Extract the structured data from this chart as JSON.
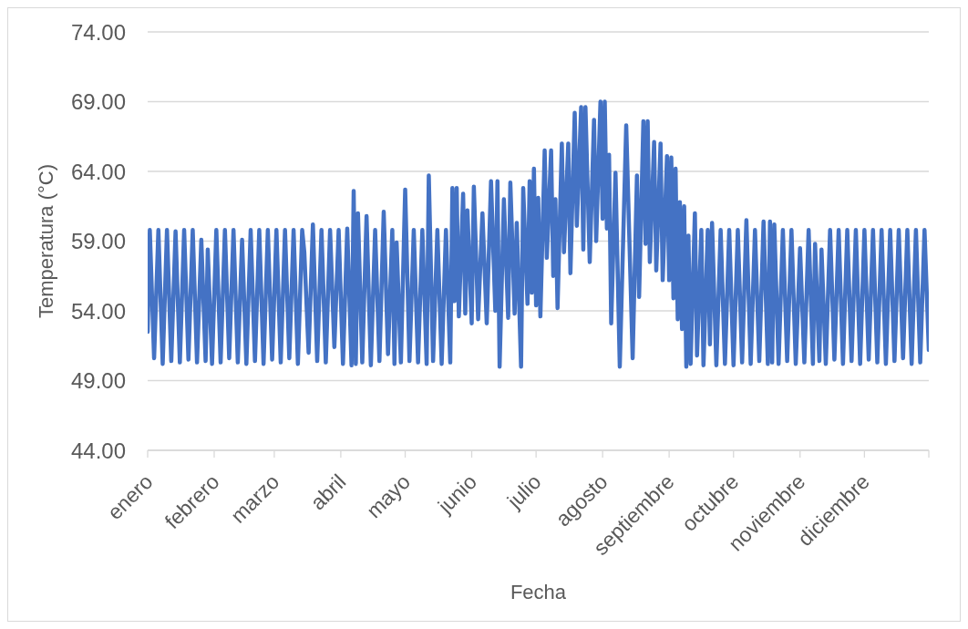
{
  "chart_data": {
    "type": "line",
    "xlabel": "Fecha",
    "ylabel": "Temperatura (°C)",
    "x": [
      "--01-01",
      "--01-02",
      "--01-04",
      "--01-06",
      "--01-08",
      "--01-10",
      "--01-12",
      "--01-14",
      "--01-16",
      "--01-18",
      "--01-20",
      "--01-22",
      "--01-24",
      "--01-26",
      "--01-28",
      "--01-29",
      "--01-31",
      "--02-02",
      "--02-04",
      "--02-06",
      "--02-08",
      "--02-10",
      "--02-12",
      "--02-14",
      "--02-16",
      "--02-18",
      "--02-20",
      "--02-22",
      "--02-24",
      "--02-26",
      "--02-28",
      "--03-02",
      "--03-04",
      "--03-06",
      "--03-08",
      "--03-10",
      "--03-12",
      "--03-14",
      "--03-15",
      "--03-17",
      "--03-19",
      "--03-21",
      "--03-23",
      "--03-25",
      "--03-27",
      "--03-29",
      "--03-31",
      "--04-02",
      "--04-04",
      "--04-06",
      "--04-07",
      "--04-08",
      "--04-09",
      "--04-11",
      "--04-13",
      "--04-15",
      "--04-17",
      "--04-19",
      "--04-21",
      "--04-23",
      "--04-25",
      "--04-26",
      "--04-27",
      "--04-29",
      "--05-01",
      "--05-03",
      "--05-05",
      "--05-07",
      "--05-09",
      "--05-11",
      "--05-12",
      "--05-14",
      "--05-16",
      "--05-18",
      "--05-20",
      "--05-22",
      "--05-23",
      "--05-24",
      "--05-25",
      "--05-26",
      "--05-28",
      "--05-29",
      "--05-30",
      "--06-01",
      "--06-02",
      "--06-04",
      "--06-06",
      "--06-08",
      "--06-10",
      "--06-12",
      "--06-13",
      "--06-14",
      "--06-16",
      "--06-18",
      "--06-19",
      "--06-21",
      "--06-22",
      "--06-24",
      "--06-25",
      "--06-27",
      "--06-28",
      "--06-29",
      "--06-30",
      "--07-01",
      "--07-02",
      "--07-03",
      "--07-05",
      "--07-06",
      "--07-08",
      "--07-09",
      "--07-10",
      "--07-11",
      "--07-13",
      "--07-14",
      "--07-16",
      "--07-17",
      "--07-19",
      "--07-20",
      "--07-22",
      "--07-23",
      "--07-24",
      "--07-26",
      "--07-28",
      "--07-29",
      "--07-31",
      "--08-01",
      "--08-02",
      "--08-03",
      "--08-04",
      "--08-05",
      "--08-07",
      "--08-09",
      "--08-12",
      "--08-15",
      "--08-17",
      "--08-18",
      "--08-20",
      "--08-21",
      "--08-22",
      "--08-23",
      "--08-25",
      "--08-26",
      "--08-28",
      "--08-29",
      "--08-31",
      "--09-01",
      "--09-02",
      "--09-03",
      "--09-04",
      "--09-05",
      "--09-06",
      "--09-07",
      "--09-08",
      "--09-09",
      "--09-10",
      "--09-11",
      "--09-13",
      "--09-14",
      "--09-16",
      "--09-17",
      "--09-19",
      "--09-20",
      "--09-21",
      "--09-23",
      "--09-25",
      "--09-27",
      "--09-29",
      "--10-01",
      "--10-03",
      "--10-05",
      "--10-07",
      "--10-09",
      "--10-11",
      "--10-13",
      "--10-15",
      "--10-17",
      "--10-18",
      "--10-19",
      "--10-20",
      "--10-22",
      "--10-24",
      "--10-26",
      "--10-28",
      "--10-30",
      "--11-01",
      "--11-03",
      "--11-05",
      "--11-07",
      "--11-08",
      "--11-10",
      "--11-11",
      "--11-13",
      "--11-15",
      "--11-17",
      "--11-19",
      "--11-21",
      "--11-23",
      "--11-25",
      "--11-27",
      "--11-29",
      "--12-01",
      "--12-03",
      "--12-05",
      "--12-07",
      "--12-09",
      "--12-11",
      "--12-13",
      "--12-15",
      "--12-17",
      "--12-19",
      "--12-21",
      "--12-23",
      "--12-25",
      "--12-27",
      "--12-29",
      "--12-31"
    ],
    "series": [
      {
        "color": "#4472c4",
        "values": [
          52.5,
          59.8,
          50.6,
          59.8,
          50.2,
          59.8,
          50.4,
          59.7,
          50.3,
          59.8,
          50.5,
          59.8,
          50.3,
          59.1,
          50.4,
          58.4,
          50.2,
          59.8,
          50.3,
          59.8,
          50.6,
          59.8,
          50.3,
          59.1,
          50.2,
          59.8,
          50.4,
          59.8,
          50.2,
          59.8,
          50.5,
          59.8,
          50.3,
          59.8,
          50.6,
          59.8,
          50.2,
          59.8,
          58.2,
          51.0,
          60.2,
          50.4,
          59.8,
          50.3,
          59.8,
          51.4,
          59.8,
          50.2,
          59.9,
          50.1,
          62.6,
          50.2,
          61.0,
          50.3,
          60.8,
          50.1,
          59.8,
          50.4,
          61.1,
          50.9,
          59.8,
          50.2,
          58.9,
          50.3,
          62.7,
          50.4,
          59.8,
          50.3,
          59.8,
          50.2,
          63.7,
          50.4,
          59.8,
          50.2,
          59.8,
          50.3,
          62.8,
          54.7,
          62.8,
          53.6,
          62.4,
          53.8,
          61.2,
          53.1,
          62.9,
          53.4,
          61.0,
          53.1,
          63.3,
          54.0,
          63.3,
          50.0,
          62.0,
          53.5,
          63.2,
          53.8,
          60.3,
          50.0,
          62.8,
          54.5,
          63.3,
          55.3,
          64.2,
          54.4,
          62.1,
          53.6,
          65.5,
          57.8,
          65.5,
          56.5,
          62.0,
          54.2,
          66.0,
          58.2,
          66.0,
          56.7,
          68.2,
          60.1,
          68.6,
          58.4,
          68.6,
          57.5,
          67.7,
          59.0,
          69.0,
          60.6,
          69.0,
          59.9,
          65.2,
          53.1,
          63.9,
          50.0,
          67.3,
          50.6,
          63.7,
          55.0,
          67.6,
          58.8,
          67.6,
          57.5,
          66.1,
          56.9,
          66.0,
          56.2,
          65.1,
          56.2,
          65.0,
          54.9,
          64.2,
          53.4,
          61.8,
          52.7,
          61.5,
          50.0,
          59.4,
          50.2,
          61.0,
          50.8,
          59.8,
          50.1,
          59.8,
          51.6,
          60.3,
          50.1,
          59.8,
          50.2,
          59.8,
          50.1,
          59.8,
          50.3,
          60.5,
          50.2,
          59.8,
          50.4,
          60.4,
          50.2,
          60.4,
          50.3,
          60.2,
          50.2,
          59.8,
          50.4,
          59.8,
          50.2,
          58.5,
          50.3,
          59.8,
          50.2,
          58.8,
          50.4,
          58.4,
          50.2,
          59.8,
          50.5,
          59.8,
          50.2,
          59.8,
          50.4,
          59.8,
          50.2,
          59.8,
          50.5,
          59.8,
          50.3,
          59.8,
          50.2,
          59.8,
          50.4,
          59.8,
          50.6,
          59.8,
          50.2,
          59.8,
          50.3,
          59.8,
          51.2
        ]
      }
    ],
    "xlim": [
      "--01-01",
      "--12-31"
    ],
    "xticks": [
      {
        "value": "--01-01",
        "label": "enero"
      },
      {
        "value": "--02-01",
        "label": "febrero"
      },
      {
        "value": "--03-01",
        "label": "marzo"
      },
      {
        "value": "--04-01",
        "label": "abril"
      },
      {
        "value": "--05-01",
        "label": "mayo"
      },
      {
        "value": "--06-01",
        "label": "junio"
      },
      {
        "value": "--07-01",
        "label": "julio"
      },
      {
        "value": "--08-01",
        "label": "agosto"
      },
      {
        "value": "--09-01",
        "label": "septiembre"
      },
      {
        "value": "--10-01",
        "label": "octubre"
      },
      {
        "value": "--11-01",
        "label": "noviembre"
      },
      {
        "value": "--12-01",
        "label": "diciembre"
      },
      {
        "value": "--12-31",
        "label": null
      }
    ],
    "ylim": [
      44,
      74
    ],
    "yticks": [
      {
        "value": 44,
        "label": "44.00"
      },
      {
        "value": 49,
        "label": "49.00"
      },
      {
        "value": 54,
        "label": "54.00"
      },
      {
        "value": 59,
        "label": "59.00"
      },
      {
        "value": 64,
        "label": "64.00"
      },
      {
        "value": 69,
        "label": "69.00"
      },
      {
        "value": 74,
        "label": "74.00"
      }
    ],
    "grid": "y",
    "marker": "none"
  }
}
